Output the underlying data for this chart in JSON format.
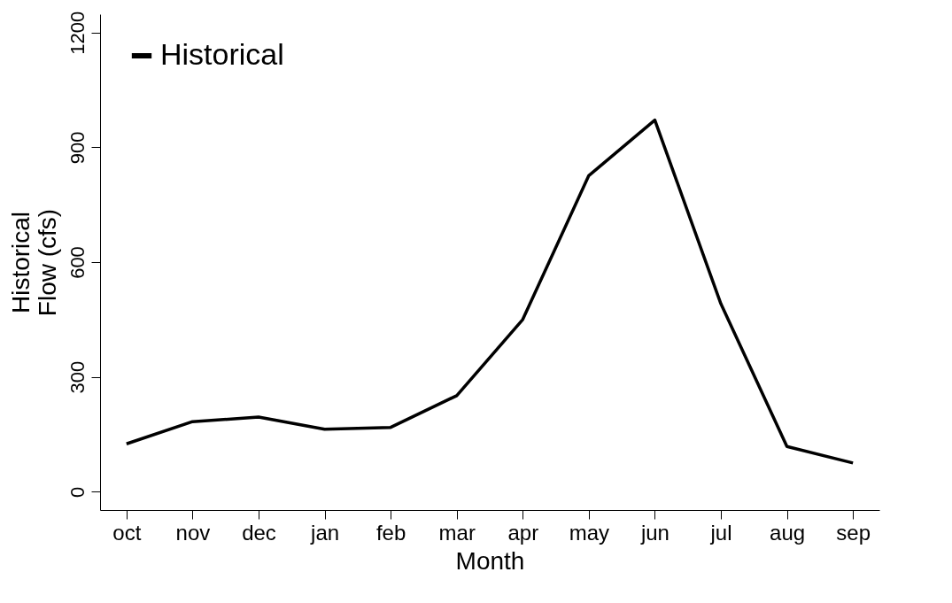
{
  "chart_data": {
    "type": "line",
    "xlabel": "Month",
    "ylabel": "Historical\nFlow (cfs)",
    "categories": [
      "oct",
      "nov",
      "dec",
      "jan",
      "feb",
      "mar",
      "apr",
      "may",
      "jun",
      "jul",
      "aug",
      "sep"
    ],
    "series": [
      {
        "name": "Historical",
        "color": "#000000",
        "values": [
          125,
          183,
          195,
          163,
          168,
          251,
          450,
          826,
          971,
          491,
          118,
          75
        ]
      }
    ],
    "ylim": [
      -48,
      1248
    ],
    "yticks": [
      0,
      300,
      600,
      900,
      1200
    ],
    "grid": false,
    "legend": "top left",
    "line_style": "solid"
  }
}
